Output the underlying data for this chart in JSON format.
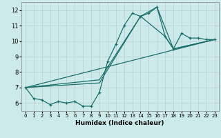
{
  "xlabel": "Humidex (Indice chaleur)",
  "bg_color": "#cceaea",
  "grid_color": "#bbcccc",
  "line_color": "#1a6e6a",
  "xlim": [
    -0.5,
    23.5
  ],
  "ylim": [
    5.5,
    12.5
  ],
  "yticks": [
    6,
    7,
    8,
    9,
    10,
    11,
    12
  ],
  "xticks": [
    0,
    1,
    2,
    3,
    4,
    5,
    6,
    7,
    8,
    9,
    10,
    11,
    12,
    13,
    14,
    15,
    16,
    17,
    18,
    19,
    20,
    21,
    22,
    23
  ],
  "main_x": [
    0,
    1,
    2,
    3,
    4,
    5,
    6,
    7,
    8,
    9,
    10,
    11,
    12,
    13,
    14,
    15,
    16,
    17,
    18,
    19,
    20,
    21,
    22,
    23
  ],
  "main_y": [
    7.0,
    6.3,
    6.2,
    5.9,
    6.1,
    6.0,
    6.1,
    5.8,
    5.8,
    6.7,
    8.7,
    9.8,
    11.0,
    11.8,
    11.6,
    11.8,
    12.2,
    10.3,
    9.5,
    10.5,
    10.2,
    10.2,
    10.1,
    10.1
  ],
  "line2_x": [
    0,
    9,
    14,
    16,
    18,
    23
  ],
  "line2_y": [
    7.0,
    7.5,
    11.6,
    12.2,
    9.5,
    10.1
  ],
  "line3_x": [
    0,
    9,
    14,
    17,
    18,
    23
  ],
  "line3_y": [
    7.0,
    7.3,
    11.6,
    10.3,
    9.5,
    10.1
  ],
  "line4_x": [
    0,
    23
  ],
  "line4_y": [
    7.0,
    10.1
  ]
}
